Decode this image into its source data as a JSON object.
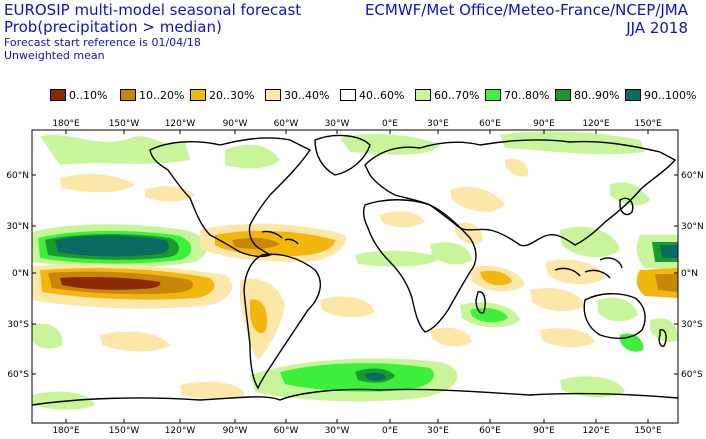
{
  "title": {
    "line1": "EUROSIP multi-model seasonal forecast",
    "line2": "Prob(precipitation > median)",
    "line3": "Forecast start reference is 01/04/18",
    "line4": "Unweighted mean"
  },
  "source": {
    "centres": "ECMWF/Met Office/Meteo-France/NCEP/JMA",
    "season": "JJA 2018"
  },
  "legend": [
    {
      "label": "0..10%",
      "color": "#8b2a00"
    },
    {
      "label": "10..20%",
      "color": "#c8860a"
    },
    {
      "label": "20..30%",
      "color": "#f2b70f"
    },
    {
      "label": "30..40%",
      "color": "#fde7a8"
    },
    {
      "label": "40..60%",
      "color": "#ffffff"
    },
    {
      "label": "60..70%",
      "color": "#c8f59a"
    },
    {
      "label": "70..80%",
      "color": "#3cf03c"
    },
    {
      "label": "80..90%",
      "color": "#1a9a2e"
    },
    {
      "label": "90..100%",
      "color": "#0b6b62"
    }
  ],
  "axes": {
    "lon_labels": [
      "180°E",
      "150°W",
      "120°W",
      "90°W",
      "60°W",
      "30°W",
      "0°E",
      "30°E",
      "60°E",
      "90°E",
      "120°E",
      "150°E"
    ],
    "lat_labels": [
      "60°N",
      "30°N",
      "0°N",
      "30°S",
      "60°S"
    ]
  },
  "colors": {
    "text_blue": "#1010c8",
    "coastline": "#000000",
    "frame": "#000000"
  }
}
